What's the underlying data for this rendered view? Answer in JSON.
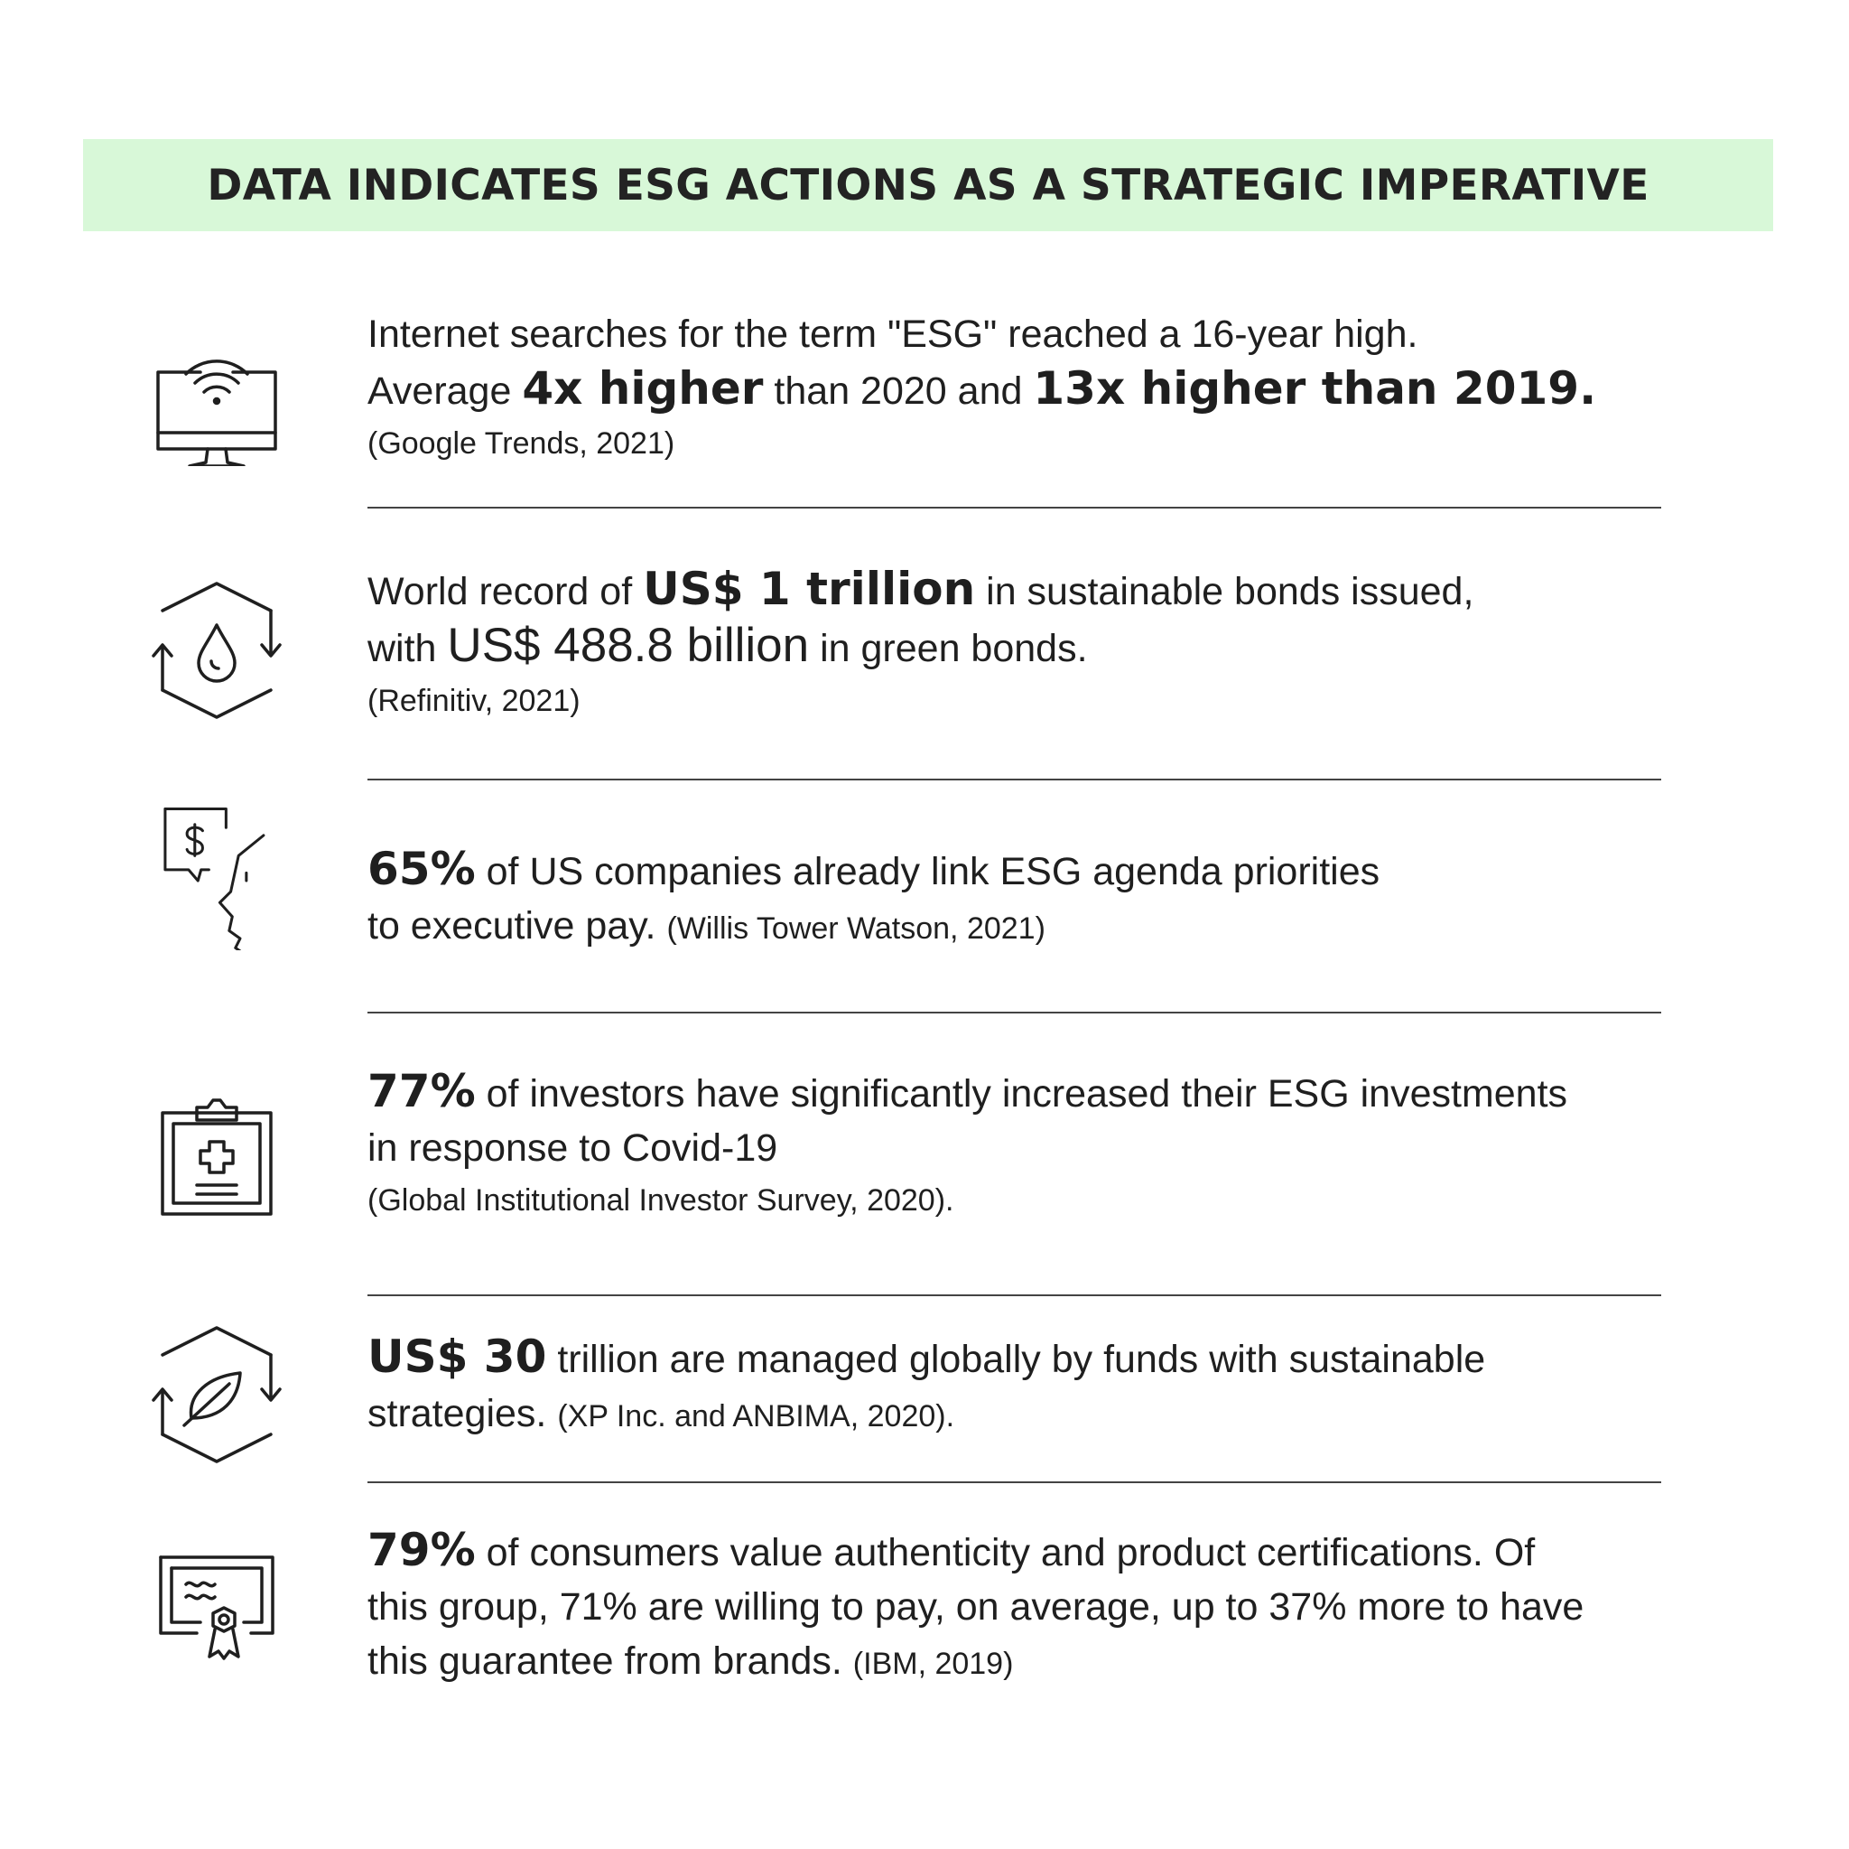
{
  "header": {
    "title": "DATA INDICATES ESG ACTIONS AS A STRATEGIC IMPERATIVE"
  },
  "items": [
    {
      "icon": "monitor-wifi-icon",
      "line1": "Internet searches for the term \"ESG\" reached a 16-year high.",
      "line2_a": "Average ",
      "line2_b": "4x higher",
      "line2_c": " than 2020 and ",
      "line2_d": "13x higher than 2019.",
      "source": "(Google Trends, 2021)"
    },
    {
      "icon": "water-drop-cycle-icon",
      "line1_a": "World record of ",
      "line1_b": "US$ 1 trillion",
      "line1_c": " in sustainable bonds issued,",
      "line2_a": "with ",
      "line2_b": "US$ 488.8 billion",
      "line2_c": " in green bonds.",
      "source": "(Refinitiv, 2021)"
    },
    {
      "icon": "person-dollar-speech-icon",
      "line1_a": "65%",
      "line1_b": " of US companies already link ESG agenda priorities",
      "line2_a": "to executive pay. ",
      "line2_b": "(Willis Tower Watson, 2021)"
    },
    {
      "icon": "clipboard-medical-icon",
      "line1_a": "77%",
      "line1_b": " of investors have significantly increased their ESG investments",
      "line2": "in response to Covid-19",
      "source": "(Global Institutional Investor Survey, 2020)."
    },
    {
      "icon": "leaf-cycle-icon",
      "line1_a": "US$ 30",
      "line1_b": " trillion are managed globally by funds with sustainable",
      "line2_a": "strategies. ",
      "line2_b": "(XP Inc. and ANBIMA, 2020)."
    },
    {
      "icon": "certificate-icon",
      "line1_a": "79%",
      "line1_b": " of consumers value authenticity and product certifications. Of",
      "line2": "this group, 71% are willing to pay, on average, up to 37% more to have",
      "line3_a": "this guarantee from brands. ",
      "line3_b": "(IBM, 2019)"
    }
  ]
}
